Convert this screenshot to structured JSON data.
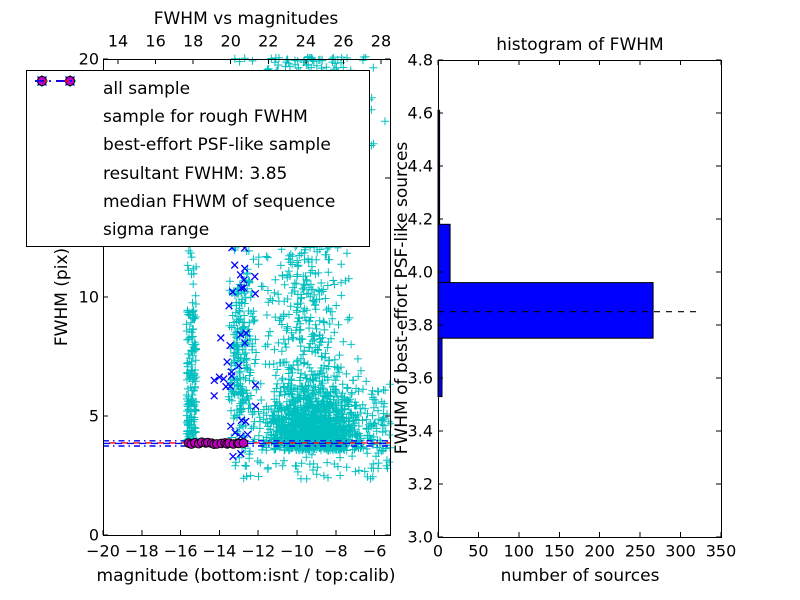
{
  "figure": {
    "background": "#ffffff"
  },
  "colors": {
    "all_sample": "#00BFBF",
    "rough_sample": "#0000FF",
    "psf_sample": "#BF00BF",
    "resultant_line": "#0000FF",
    "median_line": "#FF0000",
    "sigma_line": "#0000FF",
    "hist_bar": "#0000FF",
    "hist_dashed_line": "#000000",
    "axis": "#000000"
  },
  "legend": {
    "entries": [
      {
        "label": "all sample",
        "marker": "plus",
        "color": "#00BFBF"
      },
      {
        "label": "sample for rough FWHM",
        "marker": "cross",
        "color": "#0000FF"
      },
      {
        "label": "best-effort PSF-like sample",
        "marker": "circle",
        "color": "#BF00BF"
      },
      {
        "label": "resultant FWHM: 3.85",
        "marker": "dashed-line",
        "color": "#0000FF"
      },
      {
        "label": "median FHWM of sequence",
        "marker": "dashed-line",
        "color": "#FF0000"
      },
      {
        "label": "sigma range",
        "marker": "dashdot-line",
        "color": "#0000FF"
      }
    ]
  },
  "chart_data": [
    {
      "type": "scatter",
      "title": "FWHM vs magnitudes",
      "xlabel": "magnitude (bottom:isnt / top:calib)",
      "ylabel": "FWHM (pix)",
      "xlim": [
        -20,
        -5.21
      ],
      "ylim": [
        0,
        20
      ],
      "top_xlim": [
        13.2,
        28.48
      ],
      "x_ticks": [
        {
          "v": -20,
          "label": "−20"
        },
        {
          "v": -18,
          "label": "−18"
        },
        {
          "v": -16,
          "label": "−16"
        },
        {
          "v": -14,
          "label": "−14"
        },
        {
          "v": -12,
          "label": "−12"
        },
        {
          "v": -10,
          "label": "−10"
        },
        {
          "v": -8,
          "label": "−8"
        },
        {
          "v": -6,
          "label": "−6"
        }
      ],
      "top_ticks": [
        {
          "v": 14,
          "label": "14"
        },
        {
          "v": 16,
          "label": "16"
        },
        {
          "v": 18,
          "label": "18"
        },
        {
          "v": 20,
          "label": "20"
        },
        {
          "v": 22,
          "label": "22"
        },
        {
          "v": 24,
          "label": "24"
        },
        {
          "v": 26,
          "label": "26"
        },
        {
          "v": 28,
          "label": "28"
        }
      ],
      "y_ticks": [
        {
          "v": 0,
          "label": "0"
        },
        {
          "v": 5,
          "label": "5"
        },
        {
          "v": 10,
          "label": "10"
        },
        {
          "v": 15,
          "label": "15"
        },
        {
          "v": 20,
          "label": "20"
        }
      ],
      "seed": 7,
      "series": [
        {
          "name": "all sample",
          "marker": "plus",
          "color": "#00BFBF",
          "clusters": [
            {
              "n": 170,
              "x": [
                "u",
                -15.72,
                -15.18
              ],
              "y": [
                "p",
                3.9,
                5.6,
                2.0
              ]
            },
            {
              "n": 16,
              "x": [
                "u",
                -15.7,
                -15.2
              ],
              "y": [
                "u",
                9.5,
                12.8
              ]
            },
            {
              "n": 230,
              "x": [
                "n",
                -12.85,
                0.38,
                -13.6,
                -12.1
              ],
              "y": [
                "n",
                7.6,
                2.2,
                3.9,
                12.8
              ]
            },
            {
              "n": 1250,
              "x": [
                "n",
                -9.1,
                1.25,
                -12.4,
                -5.18
              ],
              "y": [
                "h",
                3.55,
                1.35,
                9.2
              ]
            },
            {
              "n": 300,
              "x": [
                "n",
                -9.7,
                1.0,
                -12.2,
                -6.0
              ],
              "y": [
                "u",
                6.0,
                12.8
              ]
            },
            {
              "n": 270,
              "x": [
                "n",
                -9.6,
                1.75,
                -13.9,
                -5.2
              ],
              "y": [
                "q",
                20.2,
                7.4,
                1.6,
                12.8,
                20.1
              ]
            },
            {
              "n": 65,
              "x": [
                "u",
                -13.2,
                -5.3
              ],
              "y": [
                "u",
                2.35,
                3.65
              ]
            },
            {
              "n": 45,
              "x": [
                "u",
                -6.3,
                -5.15
              ],
              "y": [
                "n",
                4.4,
                1.0,
                2.8,
                7.2
              ]
            }
          ]
        },
        {
          "name": "sample for rough FWHM",
          "marker": "cross",
          "color": "#0000FF",
          "clusters": [
            {
              "n": 15,
              "x": [
                "n",
                -13.05,
                0.55,
                -14.6,
                -11.9
              ],
              "y": [
                "u",
                8.4,
                13.2
              ]
            },
            {
              "n": 21,
              "x": [
                "n",
                -13.3,
                0.6,
                -14.7,
                -11.8
              ],
              "y": [
                "u",
                3.95,
                8.4
              ]
            }
          ],
          "extra_points": [
            [
              -13.3,
              3.3
            ],
            [
              -12.9,
              3.42
            ]
          ]
        },
        {
          "name": "best-effort PSF-like sample",
          "marker": "circle",
          "color": "#BF00BF",
          "band": {
            "n": 18,
            "x_start": -15.55,
            "x_end": -12.8,
            "y": 3.85,
            "x_jitter": 0.07,
            "y_jitter": 0.05
          }
        }
      ],
      "hlines": [
        {
          "name": "sigma-range-upper",
          "y": 3.96,
          "color": "#0000FF",
          "style": "dashdot"
        },
        {
          "name": "sigma-range-lower",
          "y": 3.74,
          "color": "#0000FF",
          "style": "dashdot"
        },
        {
          "name": "median-fwhm",
          "y": 3.87,
          "color": "#FF0000",
          "style": "dashed"
        },
        {
          "name": "resultant-fwhm",
          "y": 3.85,
          "color": "#0000FF",
          "style": "dashed"
        }
      ]
    },
    {
      "type": "bar",
      "orientation": "horizontal",
      "title": "histogram of FWHM",
      "xlabel": "number of sources",
      "ylabel": "FWHM of best-effort PSF-like sources",
      "xlim": [
        0,
        350
      ],
      "ylim": [
        3.0,
        4.8
      ],
      "bin_edges": [
        3.53,
        3.75,
        3.96,
        4.18,
        4.39,
        4.61
      ],
      "counts": [
        5,
        266,
        15,
        2,
        2
      ],
      "bar_color": "#0000FF",
      "x_ticks": [
        {
          "v": 0,
          "label": "0"
        },
        {
          "v": 50,
          "label": "50"
        },
        {
          "v": 100,
          "label": "100"
        },
        {
          "v": 150,
          "label": "150"
        },
        {
          "v": 200,
          "label": "200"
        },
        {
          "v": 250,
          "label": "250"
        },
        {
          "v": 300,
          "label": "300"
        },
        {
          "v": 350,
          "label": "350"
        }
      ],
      "y_ticks": [
        {
          "v": 3.0,
          "label": "3.0"
        },
        {
          "v": 3.2,
          "label": "3.2"
        },
        {
          "v": 3.4,
          "label": "3.4"
        },
        {
          "v": 3.6,
          "label": "3.6"
        },
        {
          "v": 3.8,
          "label": "3.8"
        },
        {
          "v": 4.0,
          "label": "4.0"
        },
        {
          "v": 4.2,
          "label": "4.2"
        },
        {
          "v": 4.4,
          "label": "4.4"
        },
        {
          "v": 4.6,
          "label": "4.6"
        },
        {
          "v": 4.8,
          "label": "4.8"
        }
      ],
      "dashed_line": {
        "y": 3.85,
        "x_end": 320
      }
    }
  ]
}
